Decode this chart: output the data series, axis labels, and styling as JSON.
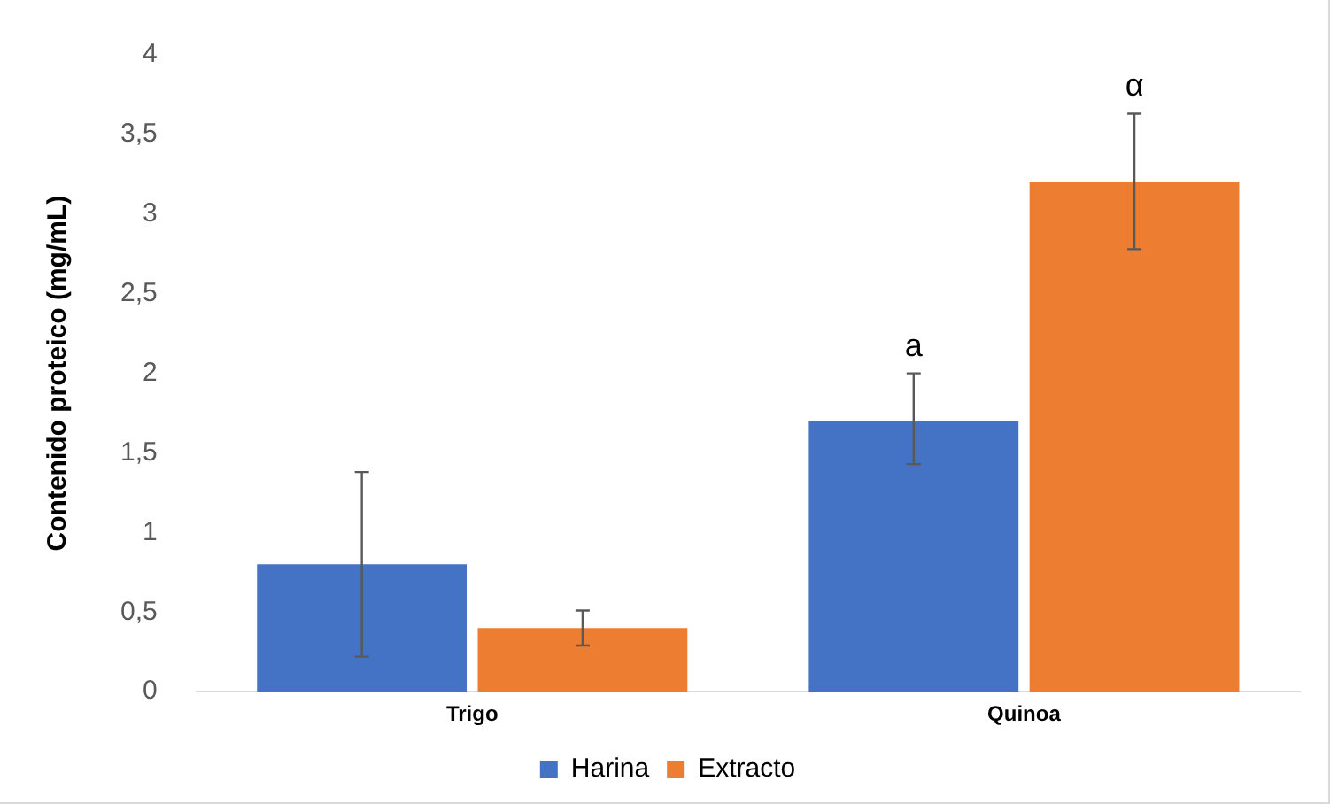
{
  "chart_data": {
    "type": "bar",
    "ylabel": "Contenido proteico (mg/mL)",
    "categories": [
      "Trigo",
      "Quinoa"
    ],
    "series": [
      {
        "name": "Harina",
        "color": "#4472c4",
        "values": [
          0.8,
          1.7
        ],
        "errors": [
          [
            0.22,
            1.38
          ],
          [
            1.43,
            2.0
          ]
        ],
        "value_labels": [
          null,
          "a"
        ]
      },
      {
        "name": "Extracto",
        "color": "#ed7d31",
        "values": [
          0.4,
          3.2
        ],
        "errors": [
          [
            0.29,
            0.51
          ],
          [
            2.78,
            3.63
          ]
        ],
        "value_labels": [
          null,
          "α"
        ]
      }
    ],
    "ylim": [
      0,
      4
    ],
    "yticks": [
      0,
      {
        "value": 0.5,
        "label": "0,5"
      },
      1,
      {
        "value": 1.5,
        "label": "1,5"
      },
      2,
      {
        "value": 2.5,
        "label": "2,5"
      },
      3,
      {
        "value": 3.5,
        "label": "3,5"
      },
      4
    ],
    "grid": false,
    "legend": "bottom"
  }
}
